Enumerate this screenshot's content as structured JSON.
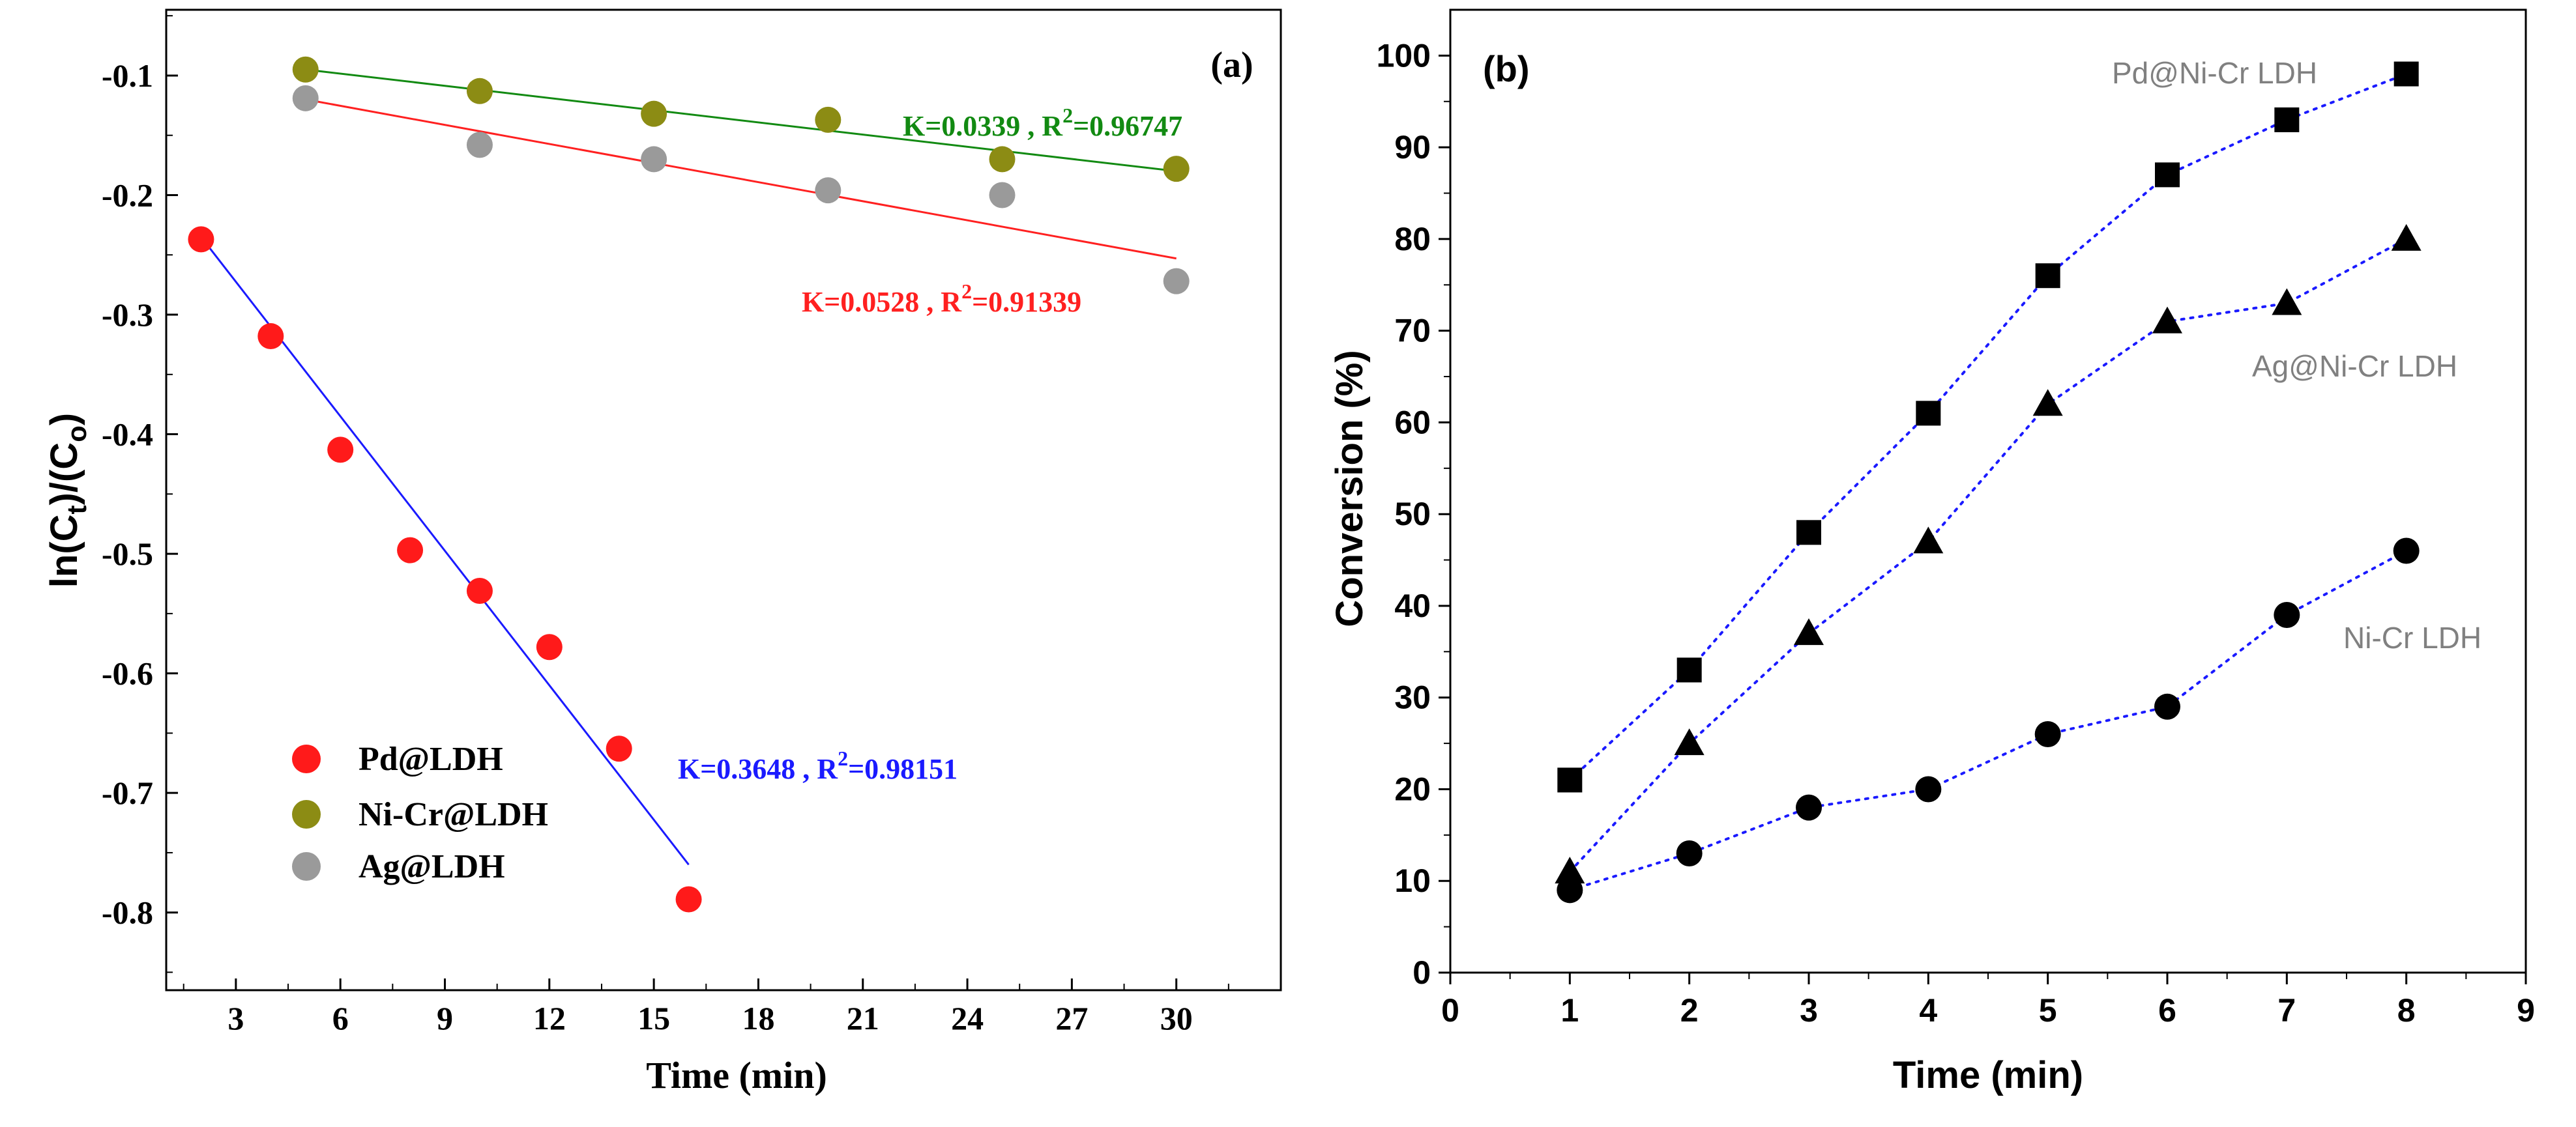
{
  "chart_data": [
    {
      "type": "scatter",
      "panel_label": "(a)",
      "xlabel": "Time (min)",
      "ylabel_parts": [
        "ln(C",
        "t",
        ")/(C",
        "o",
        ")"
      ],
      "xlim": [
        1,
        33
      ],
      "ylim": [
        -0.865,
        -0.045
      ],
      "xticks": [
        3,
        6,
        9,
        12,
        15,
        18,
        21,
        24,
        27,
        30
      ],
      "yticks": [
        -0.8,
        -0.7,
        -0.6,
        -0.5,
        -0.4,
        -0.3,
        -0.2,
        -0.1
      ],
      "xtick_labels": [
        "3",
        "6",
        "9",
        "12",
        "15",
        "18",
        "21",
        "24",
        "27",
        "30"
      ],
      "ytick_labels": [
        "-0.8",
        "-0.7",
        "-0.6",
        "-0.5",
        "-0.4",
        "-0.3",
        "-0.2",
        "-0.1"
      ],
      "series": [
        {
          "name": "Pd@LDH",
          "color": "#ff1a1a",
          "x": [
            2,
            4,
            6,
            8,
            10,
            12,
            14,
            16
          ],
          "y": [
            -0.237,
            -0.318,
            -0.413,
            -0.497,
            -0.531,
            -0.578,
            -0.663,
            -0.789
          ],
          "fit": {
            "x1": 2,
            "y1": -0.235,
            "x2": 16,
            "y2": -0.76,
            "color": "#1a1aff"
          },
          "annotation": {
            "k": "K=0.3648 , R",
            "sup": "2",
            "r2": "=0.98151",
            "color": "#1a1aff"
          }
        },
        {
          "name": "Ni-Cr@LDH",
          "color": "#8c8c14",
          "x": [
            5,
            10,
            15,
            20,
            25,
            30
          ],
          "y": [
            -0.095,
            -0.113,
            -0.132,
            -0.137,
            -0.17,
            -0.178
          ],
          "fit": {
            "x1": 5,
            "y1": -0.095,
            "x2": 30,
            "y2": -0.18,
            "color": "#128a12"
          },
          "annotation": {
            "k": "K=0.0339 , R",
            "sup": "2",
            "r2": "=0.96747",
            "color": "#128a12"
          }
        },
        {
          "name": "Ag@LDH",
          "color": "#9a9a9a",
          "x": [
            5,
            10,
            15,
            20,
            25,
            30
          ],
          "y": [
            -0.119,
            -0.158,
            -0.17,
            -0.196,
            -0.2,
            -0.272
          ],
          "fit": {
            "x1": 5,
            "y1": -0.12,
            "x2": 30,
            "y2": -0.253,
            "color": "#ff2020"
          },
          "annotation": {
            "k": "K=0.0528 , R",
            "sup": "2",
            "r2": "=0.91339",
            "color": "#ff2020"
          }
        }
      ],
      "legend": [
        "Pd@LDH",
        "Ni-Cr@LDH",
        "Ag@LDH"
      ]
    },
    {
      "type": "scatter",
      "panel_label": "(b)",
      "xlabel": "Time (min)",
      "ylabel": "Conversion (%)",
      "xlim": [
        0,
        9
      ],
      "ylim": [
        0,
        105
      ],
      "xticks": [
        0,
        1,
        2,
        3,
        4,
        5,
        6,
        7,
        8,
        9
      ],
      "yticks": [
        0,
        10,
        20,
        30,
        40,
        50,
        60,
        70,
        80,
        90,
        100
      ],
      "xtick_labels": [
        "0",
        "1",
        "2",
        "3",
        "4",
        "5",
        "6",
        "7",
        "8",
        "9"
      ],
      "ytick_labels": [
        "0",
        "10",
        "20",
        "30",
        "40",
        "50",
        "60",
        "70",
        "80",
        "90",
        "100"
      ],
      "series": [
        {
          "name": "Pd@Ni-Cr LDH",
          "marker": "square",
          "x": [
            1,
            2,
            3,
            4,
            5,
            6,
            7,
            8
          ],
          "y": [
            21,
            33,
            48,
            61,
            76,
            87,
            93,
            98
          ]
        },
        {
          "name": "Ag@Ni-Cr LDH",
          "marker": "triangle",
          "x": [
            1,
            2,
            3,
            4,
            5,
            6,
            7,
            8
          ],
          "y": [
            11,
            25,
            37,
            47,
            62,
            71,
            73,
            80
          ]
        },
        {
          "name": "Ni-Cr LDH",
          "marker": "circle",
          "x": [
            1,
            2,
            3,
            4,
            5,
            6,
            7,
            8
          ],
          "y": [
            9,
            13,
            18,
            20,
            26,
            29,
            39,
            46
          ]
        }
      ],
      "marker_color": "#000000",
      "dotted_line_color": "#1a1aff",
      "label_color": "#808080"
    }
  ]
}
